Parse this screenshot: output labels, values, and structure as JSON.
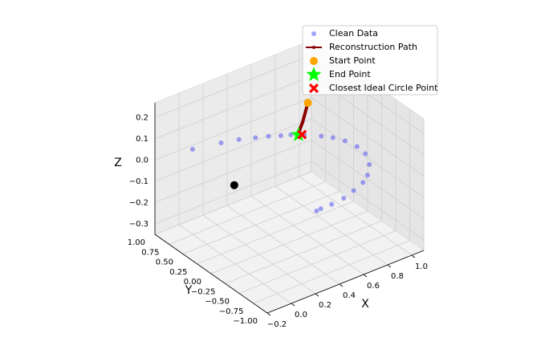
{
  "chart_data": {
    "type": "scatter3d",
    "xlabel": "X",
    "ylabel": "Y",
    "zlabel": "Z",
    "xlim": [
      -0.2,
      1.1
    ],
    "ylim": [
      -1.0,
      1.0
    ],
    "zlim": [
      -0.35,
      0.27
    ],
    "xticks": [
      {
        "value": -0.2,
        "label": "−0.2"
      },
      {
        "value": 0,
        "label": "0.0"
      },
      0.2,
      0.4,
      0.6,
      0.8,
      {
        "value": 1.0,
        "label": "1.0"
      }
    ],
    "yticks": [
      {
        "value": -1.0,
        "label": "−1.00"
      },
      {
        "value": -0.75,
        "label": "−0.75"
      },
      {
        "value": -0.5,
        "label": "−0.50"
      },
      {
        "value": -0.25,
        "label": "−0.25"
      },
      {
        "value": 0,
        "label": "0.00"
      },
      0.25,
      {
        "value": 0.5,
        "label": "0.50"
      },
      0.75,
      {
        "value": 1.0,
        "label": "1.00"
      }
    ],
    "zticks": [
      {
        "value": -0.3,
        "label": "−0.3"
      },
      {
        "value": -0.2,
        "label": "−0.2"
      },
      {
        "value": -0.1,
        "label": "−0.1"
      },
      {
        "value": 0,
        "label": "0.0"
      },
      0.1,
      0.2
    ],
    "grid": true,
    "legend": "upper right",
    "series": [
      {
        "name": "Clean Data",
        "color": "#5555ee",
        "marker": "dot",
        "x": [
          0.08,
          0.28,
          0.4,
          0.5,
          0.58,
          0.65,
          0.71,
          0.78,
          0.86,
          0.91,
          0.95,
          0.97,
          0.96,
          0.9,
          0.81,
          0.73,
          0.62,
          0.51,
          0.4,
          0.31,
          0.27
        ],
        "y": [
          0.93,
          0.85,
          0.79,
          0.71,
          0.65,
          0.58,
          0.53,
          0.44,
          0.31,
          0.21,
          0.08,
          -0.09,
          -0.26,
          -0.46,
          -0.62,
          -0.71,
          -0.78,
          -0.84,
          -0.86,
          -0.86,
          -0.87
        ],
        "z": [
          0,
          0,
          0,
          0,
          0,
          0,
          0,
          0,
          0,
          0,
          0,
          0,
          0,
          0,
          0,
          0,
          0,
          0,
          0,
          0,
          0
        ]
      },
      {
        "name": "Reconstruction Path",
        "color": "#8b0000",
        "marker": "line",
        "x": [
          0.8,
          0.79,
          0.78,
          0.77,
          0.76,
          0.75
        ],
        "y": [
          0.42,
          0.43,
          0.44,
          0.45,
          0.47,
          0.48
        ],
        "z": [
          0.15,
          0.12,
          0.09,
          0.06,
          0.03,
          0
        ]
      },
      {
        "name": "Start Point",
        "color": "#ffa500",
        "marker": "circle",
        "x": [
          0.8
        ],
        "y": [
          0.42
        ],
        "z": [
          0.15
        ]
      },
      {
        "name": "End Point",
        "color": "#00ff00",
        "marker": "star",
        "x": [
          0.75
        ],
        "y": [
          0.48
        ],
        "z": [
          0
        ]
      },
      {
        "name": "Closest Ideal Circle Point",
        "color": "#ff0000",
        "marker": "x",
        "x": [
          0.77
        ],
        "y": [
          0.46
        ],
        "z": [
          0
        ]
      }
    ],
    "extra_points": [
      {
        "x": 0.03,
        "y": 0.08,
        "z": 0,
        "color": "#000000"
      }
    ]
  }
}
